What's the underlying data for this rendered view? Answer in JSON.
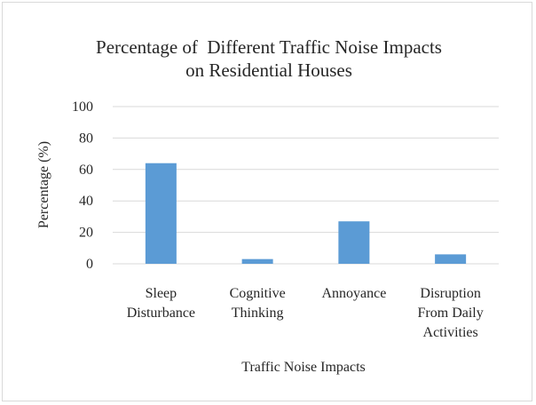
{
  "chart_data": {
    "type": "bar",
    "title_lines": [
      "Percentage of  Different Traffic Noise Impacts",
      "on Residential Houses"
    ],
    "categories": [
      [
        "Sleep",
        "Disturbance"
      ],
      [
        "Cognitive",
        "Thinking"
      ],
      [
        "Annoyance"
      ],
      [
        "Disruption",
        "From Daily",
        "Activities"
      ]
    ],
    "values": [
      64,
      3,
      27,
      6
    ],
    "xlabel": "Traffic Noise Impacts",
    "ylabel": "Percentage (%)",
    "ylim": [
      0,
      100
    ],
    "yticks": [
      0,
      20,
      40,
      60,
      80,
      100
    ],
    "grid": true,
    "legend": "none"
  },
  "colors": {
    "bar": "#5b9bd5",
    "grid": "#d9d9d9",
    "text": "#262626"
  }
}
